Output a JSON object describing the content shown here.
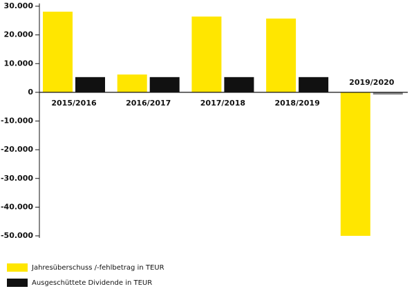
{
  "chart_data": {
    "type": "bar",
    "categories": [
      "2015/2016",
      "2016/2017",
      "2017/2018",
      "2018/2019",
      "2019/2020"
    ],
    "series": [
      {
        "name": "Jahresüberschuss /-fehlbetrag in TEUR",
        "color": "#ffe600",
        "values": [
          28100,
          6200,
          26400,
          25700,
          -50000
        ]
      },
      {
        "name": "Ausgeschüttete Dividende in TEUR",
        "color": "#111111",
        "point_colors": [
          "#111111",
          "#111111",
          "#111111",
          "#111111",
          "#8a8a8a"
        ],
        "values": [
          5300,
          5300,
          5300,
          5300,
          -800
        ]
      }
    ],
    "ylim": [
      -50000,
      30000
    ],
    "yticks": [
      {
        "value": -50000,
        "label": "-50.000"
      },
      {
        "value": -40000,
        "label": "-40.000"
      },
      {
        "value": -30000,
        "label": "-30.000"
      },
      {
        "value": -20000,
        "label": "-20.000"
      },
      {
        "value": -10000,
        "label": "-10.000"
      },
      0,
      {
        "value": 10000,
        "label": "10.000"
      },
      {
        "value": 20000,
        "label": "20.000"
      },
      {
        "value": 30000,
        "label": "30.000"
      }
    ],
    "legend": "bottom-left"
  }
}
